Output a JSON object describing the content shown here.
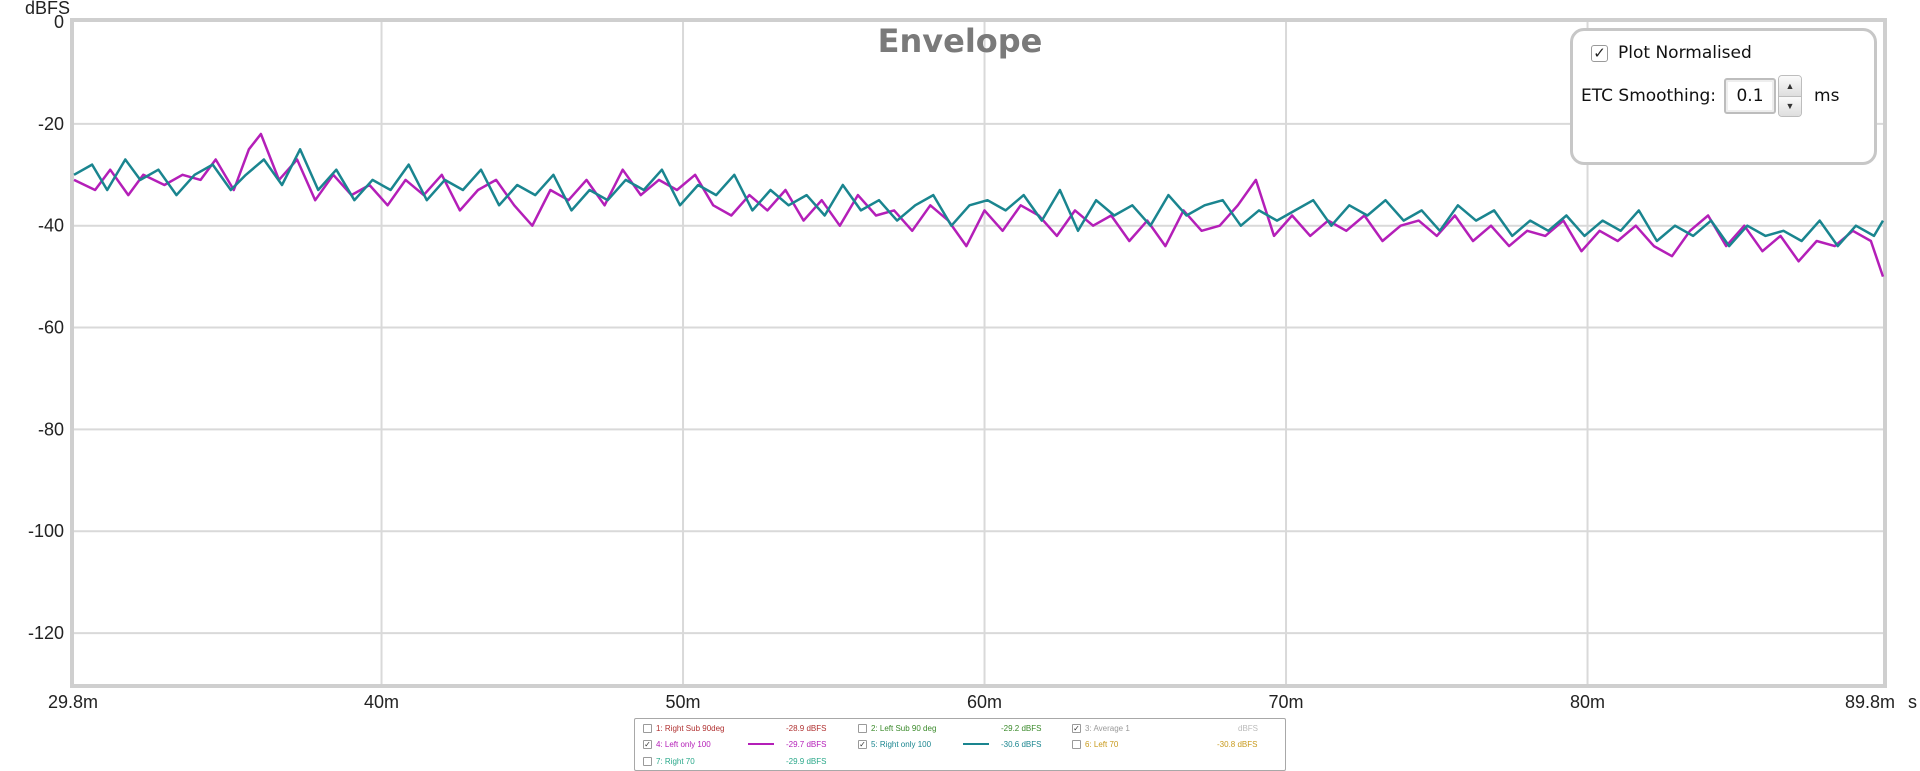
{
  "chart_data": {
    "type": "line",
    "title": "Envelope",
    "ylabel": "dBFS",
    "xlabel": "",
    "x_unit_label": "s",
    "xlim": [
      29.8,
      89.8
    ],
    "ylim": [
      -130,
      0
    ],
    "grid": true,
    "xticks": [
      {
        "value": 29.8,
        "label": "29.8m"
      },
      {
        "value": 40,
        "label": "40m"
      },
      {
        "value": 50,
        "label": "50m"
      },
      {
        "value": 60,
        "label": "60m"
      },
      {
        "value": 70,
        "label": "70m"
      },
      {
        "value": 80,
        "label": "80m"
      },
      {
        "value": 89.8,
        "label": "89.8m"
      }
    ],
    "yticks": [
      {
        "value": 0,
        "label": "0"
      },
      {
        "value": -20,
        "label": "-20"
      },
      {
        "value": -40,
        "label": "-40"
      },
      {
        "value": -60,
        "label": "-60"
      },
      {
        "value": -80,
        "label": "-80"
      },
      {
        "value": -100,
        "label": "-100"
      },
      {
        "value": -120,
        "label": "-120"
      }
    ],
    "series": [
      {
        "name": "4: Left only 100",
        "color": "#b41fb8",
        "x": [
          29.8,
          30.5,
          31.0,
          31.6,
          32.1,
          32.8,
          33.4,
          34.0,
          34.5,
          35.1,
          35.6,
          36.0,
          36.6,
          37.2,
          37.8,
          38.4,
          39.0,
          39.6,
          40.2,
          40.8,
          41.4,
          42.0,
          42.6,
          43.2,
          43.8,
          44.4,
          45.0,
          45.6,
          46.2,
          46.8,
          47.4,
          48.0,
          48.6,
          49.2,
          49.8,
          50.4,
          51.0,
          51.6,
          52.2,
          52.8,
          53.4,
          54.0,
          54.6,
          55.2,
          55.8,
          56.4,
          57.0,
          57.6,
          58.2,
          58.8,
          59.4,
          60.0,
          60.6,
          61.2,
          61.8,
          62.4,
          63.0,
          63.6,
          64.2,
          64.8,
          65.4,
          66.0,
          66.6,
          67.2,
          67.8,
          68.4,
          69.0,
          69.6,
          70.2,
          70.8,
          71.4,
          72.0,
          72.6,
          73.2,
          73.8,
          74.4,
          75.0,
          75.6,
          76.2,
          76.8,
          77.4,
          78.0,
          78.6,
          79.2,
          79.8,
          80.4,
          81.0,
          81.6,
          82.2,
          82.8,
          83.4,
          84.0,
          84.6,
          85.2,
          85.8,
          86.4,
          87.0,
          87.6,
          88.2,
          88.8,
          89.4,
          89.8
        ],
        "values": [
          -31,
          -33,
          -29,
          -34,
          -30,
          -32,
          -30,
          -31,
          -27,
          -33,
          -25,
          -22,
          -31,
          -27,
          -35,
          -30,
          -34,
          -32,
          -36,
          -31,
          -34,
          -30,
          -37,
          -33,
          -31,
          -36,
          -40,
          -33,
          -35,
          -31,
          -36,
          -29,
          -34,
          -31,
          -33,
          -30,
          -36,
          -38,
          -34,
          -37,
          -33,
          -39,
          -35,
          -40,
          -34,
          -38,
          -37,
          -41,
          -36,
          -39,
          -44,
          -37,
          -41,
          -36,
          -38,
          -42,
          -37,
          -40,
          -38,
          -43,
          -39,
          -44,
          -37,
          -41,
          -40,
          -36,
          -31,
          -42,
          -38,
          -42,
          -39,
          -41,
          -38,
          -43,
          -40,
          -39,
          -42,
          -38,
          -43,
          -40,
          -44,
          -41,
          -42,
          -39,
          -45,
          -41,
          -43,
          -40,
          -44,
          -46,
          -41,
          -38,
          -44,
          -40,
          -45,
          -42,
          -47,
          -43,
          -44,
          -41,
          -43,
          -50
        ],
        "visible": true
      },
      {
        "name": "5: Right only 100",
        "color": "#1a858f",
        "x": [
          29.8,
          30.4,
          30.9,
          31.5,
          32.0,
          32.6,
          33.2,
          33.8,
          34.4,
          35.0,
          35.5,
          36.1,
          36.7,
          37.3,
          37.9,
          38.5,
          39.1,
          39.7,
          40.3,
          40.9,
          41.5,
          42.1,
          42.7,
          43.3,
          43.9,
          44.5,
          45.1,
          45.7,
          46.3,
          46.9,
          47.5,
          48.1,
          48.7,
          49.3,
          49.9,
          50.5,
          51.1,
          51.7,
          52.3,
          52.9,
          53.5,
          54.1,
          54.7,
          55.3,
          55.9,
          56.5,
          57.1,
          57.7,
          58.3,
          58.9,
          59.5,
          60.1,
          60.7,
          61.3,
          61.9,
          62.5,
          63.1,
          63.7,
          64.3,
          64.9,
          65.5,
          66.1,
          66.7,
          67.3,
          67.9,
          68.5,
          69.1,
          69.7,
          70.3,
          70.9,
          71.5,
          72.1,
          72.7,
          73.3,
          73.9,
          74.5,
          75.1,
          75.7,
          76.3,
          76.9,
          77.5,
          78.1,
          78.7,
          79.3,
          79.9,
          80.5,
          81.1,
          81.7,
          82.3,
          82.9,
          83.5,
          84.1,
          84.7,
          85.3,
          85.9,
          86.5,
          87.1,
          87.7,
          88.3,
          88.9,
          89.5,
          89.8
        ],
        "values": [
          -30,
          -28,
          -33,
          -27,
          -31,
          -29,
          -34,
          -30,
          -28,
          -33,
          -30,
          -27,
          -32,
          -25,
          -33,
          -29,
          -35,
          -31,
          -33,
          -28,
          -35,
          -31,
          -33,
          -29,
          -36,
          -32,
          -34,
          -30,
          -37,
          -33,
          -35,
          -31,
          -33,
          -29,
          -36,
          -32,
          -34,
          -30,
          -37,
          -33,
          -36,
          -34,
          -38,
          -32,
          -37,
          -35,
          -39,
          -36,
          -34,
          -40,
          -36,
          -35,
          -37,
          -34,
          -39,
          -33,
          -41,
          -35,
          -38,
          -36,
          -40,
          -34,
          -38,
          -36,
          -35,
          -40,
          -37,
          -39,
          -37,
          -35,
          -40,
          -36,
          -38,
          -35,
          -39,
          -37,
          -41,
          -36,
          -39,
          -37,
          -42,
          -39,
          -41,
          -38,
          -42,
          -39,
          -41,
          -37,
          -43,
          -40,
          -42,
          -39,
          -44,
          -40,
          -42,
          -41,
          -43,
          -39,
          -44,
          -40,
          -42,
          -39
        ],
        "visible": true
      }
    ]
  },
  "controls": {
    "plot_normalised": {
      "label": "Plot Normalised",
      "checked": "✓"
    },
    "etc_smoothing": {
      "label": "ETC Smoothing:",
      "value": "0.1",
      "unit": "ms"
    }
  },
  "legend": {
    "items": [
      {
        "label": "1: Right Sub 90deg",
        "value": "-28.9 dBFS",
        "color": "#b03030",
        "checked": ""
      },
      {
        "label": "2: Left Sub 90 deg",
        "value": "-29.2 dBFS",
        "color": "#3a8a2a",
        "checked": ""
      },
      {
        "label": "3: Average 1",
        "value": "dBFS",
        "color": "#9a9a9a",
        "checked": "✓"
      },
      {
        "label": "4: Left only 100",
        "value": "-29.7 dBFS",
        "color": "#b41fb8",
        "checked": "✓"
      },
      {
        "label": "5: Right only 100",
        "value": "-30.6 dBFS",
        "color": "#1a858f",
        "checked": "✓"
      },
      {
        "label": "6: Left 70",
        "value": "-30.8 dBFS",
        "color": "#c89a1c",
        "checked": ""
      },
      {
        "label": "7: Right 70",
        "value": "-29.9 dBFS",
        "color": "#2aa88a",
        "checked": ""
      }
    ]
  }
}
